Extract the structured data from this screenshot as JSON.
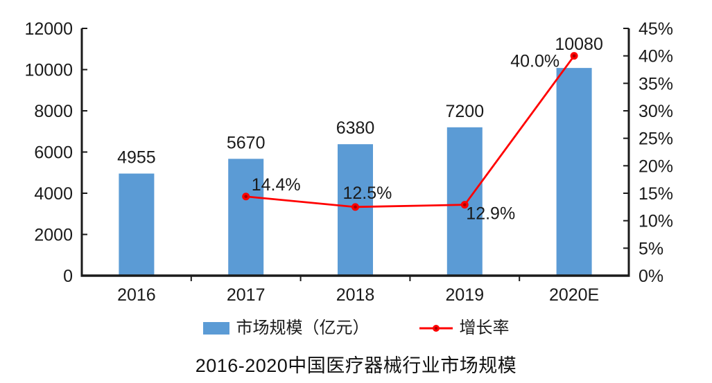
{
  "title": "2016-2020中国医疗器械行业市场规模",
  "legend": {
    "bar_label": "市场规模（亿元）",
    "line_label": "增长率"
  },
  "colors": {
    "bar": "#5B9BD5",
    "line": "#FF0000",
    "line_marker_core": "#A80000",
    "axis": "#1a1a1a",
    "text": "#1a1a1a"
  },
  "chart_data": {
    "type": "combo-bar-line",
    "title": "2016-2020中国医疗器械行业市场规模",
    "categories": [
      "2016",
      "2017",
      "2018",
      "2019",
      "2020E"
    ],
    "series": [
      {
        "name": "市场规模（亿元）",
        "type": "bar",
        "axis": "left",
        "values": [
          4955,
          5670,
          6380,
          7200,
          10080
        ],
        "data_labels": [
          "4955",
          "5670",
          "6380",
          "7200",
          "10080"
        ],
        "color": "#5B9BD5"
      },
      {
        "name": "增长率",
        "type": "line",
        "axis": "right",
        "values": [
          null,
          14.4,
          12.5,
          12.9,
          40.0
        ],
        "data_labels": [
          "",
          "14.4%",
          "12.5%",
          "12.9%",
          "40.0%"
        ],
        "color": "#FF0000"
      }
    ],
    "left_axis": {
      "min": 0,
      "max": 12000,
      "step": 2000,
      "tick_labels": [
        "0",
        "2000",
        "4000",
        "6000",
        "8000",
        "10000",
        "12000"
      ]
    },
    "right_axis": {
      "min": 0,
      "max": 45,
      "step": 5,
      "tick_labels": [
        "0%",
        "5%",
        "10%",
        "15%",
        "20%",
        "25%",
        "30%",
        "35%",
        "40%",
        "45%"
      ]
    },
    "grid": false,
    "legend_position": "bottom"
  }
}
